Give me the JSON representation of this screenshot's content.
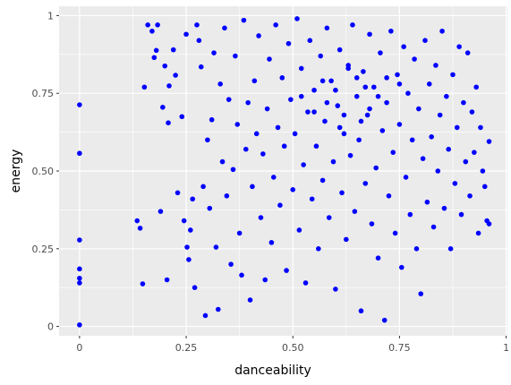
{
  "chart_data": {
    "type": "scatter",
    "title": "",
    "xlabel": "danceability",
    "ylabel": "energy",
    "xlim": [
      -0.048,
      1.003
    ],
    "ylim": [
      -0.03,
      1.03
    ],
    "x_ticks": [
      0,
      0.25,
      0.5,
      0.75,
      1
    ],
    "x_tick_labels": [
      "0",
      "0.25",
      "0.50",
      "0.75",
      "1"
    ],
    "y_ticks": [
      0,
      0.25,
      0.5,
      0.75,
      1
    ],
    "y_tick_labels": [
      "0",
      "0.25",
      "0.50",
      "0.75",
      "1"
    ],
    "grid": true,
    "legend": "none",
    "point_color": "#0000ff",
    "panel_background": "#ebebeb",
    "gridline_color": "#ffffff",
    "series": [
      {
        "points": [
          [
            0,
            0.713
          ],
          [
            0,
            0.557
          ],
          [
            0,
            0.278
          ],
          [
            0,
            0.185
          ],
          [
            0,
            0.155
          ],
          [
            0,
            0.14
          ],
          [
            0,
            0.005
          ],
          [
            0.135,
            0.34
          ],
          [
            0.142,
            0.316
          ],
          [
            0.148,
            0.137
          ],
          [
            0.152,
            0.77
          ],
          [
            0.16,
            0.97
          ],
          [
            0.17,
            0.95
          ],
          [
            0.175,
            0.865
          ],
          [
            0.18,
            0.888
          ],
          [
            0.183,
            0.97
          ],
          [
            0.19,
            0.37
          ],
          [
            0.195,
            0.705
          ],
          [
            0.2,
            0.838
          ],
          [
            0.205,
            0.15
          ],
          [
            0.208,
            0.655
          ],
          [
            0.21,
            0.774
          ],
          [
            0.22,
            0.89
          ],
          [
            0.225,
            0.808
          ],
          [
            0.23,
            0.43
          ],
          [
            0.24,
            0.675
          ],
          [
            0.245,
            0.34
          ],
          [
            0.25,
            0.94
          ],
          [
            0.252,
            0.255
          ],
          [
            0.256,
            0.215
          ],
          [
            0.26,
            0.31
          ],
          [
            0.265,
            0.41
          ],
          [
            0.27,
            0.125
          ],
          [
            0.275,
            0.97
          ],
          [
            0.28,
            0.92
          ],
          [
            0.285,
            0.835
          ],
          [
            0.29,
            0.45
          ],
          [
            0.295,
            0.035
          ],
          [
            0.3,
            0.6
          ],
          [
            0.305,
            0.38
          ],
          [
            0.31,
            0.665
          ],
          [
            0.315,
            0.88
          ],
          [
            0.32,
            0.255
          ],
          [
            0.325,
            0.055
          ],
          [
            0.33,
            0.78
          ],
          [
            0.335,
            0.53
          ],
          [
            0.34,
            0.96
          ],
          [
            0.345,
            0.42
          ],
          [
            0.35,
            0.73
          ],
          [
            0.355,
            0.2
          ],
          [
            0.36,
            0.505
          ],
          [
            0.365,
            0.87
          ],
          [
            0.37,
            0.65
          ],
          [
            0.375,
            0.3
          ],
          [
            0.38,
            0.165
          ],
          [
            0.385,
            0.985
          ],
          [
            0.39,
            0.57
          ],
          [
            0.395,
            0.72
          ],
          [
            0.4,
            0.085
          ],
          [
            0.405,
            0.45
          ],
          [
            0.41,
            0.79
          ],
          [
            0.415,
            0.62
          ],
          [
            0.42,
            0.935
          ],
          [
            0.425,
            0.35
          ],
          [
            0.43,
            0.555
          ],
          [
            0.435,
            0.15
          ],
          [
            0.44,
            0.7
          ],
          [
            0.445,
            0.86
          ],
          [
            0.45,
            0.27
          ],
          [
            0.455,
            0.48
          ],
          [
            0.46,
            0.97
          ],
          [
            0.465,
            0.64
          ],
          [
            0.47,
            0.39
          ],
          [
            0.475,
            0.8
          ],
          [
            0.48,
            0.58
          ],
          [
            0.485,
            0.18
          ],
          [
            0.49,
            0.91
          ],
          [
            0.495,
            0.73
          ],
          [
            0.5,
            0.44
          ],
          [
            0.505,
            0.62
          ],
          [
            0.51,
            0.99
          ],
          [
            0.515,
            0.31
          ],
          [
            0.52,
            0.83
          ],
          [
            0.525,
            0.52
          ],
          [
            0.53,
            0.14
          ],
          [
            0.535,
            0.69
          ],
          [
            0.54,
            0.92
          ],
          [
            0.545,
            0.41
          ],
          [
            0.55,
            0.76
          ],
          [
            0.555,
            0.58
          ],
          [
            0.56,
            0.25
          ],
          [
            0.565,
            0.87
          ],
          [
            0.57,
            0.47
          ],
          [
            0.575,
            0.66
          ],
          [
            0.58,
            0.96
          ],
          [
            0.585,
            0.35
          ],
          [
            0.59,
            0.79
          ],
          [
            0.595,
            0.53
          ],
          [
            0.6,
            0.12
          ],
          [
            0.605,
            0.71
          ],
          [
            0.61,
            0.89
          ],
          [
            0.615,
            0.43
          ],
          [
            0.62,
            0.62
          ],
          [
            0.625,
            0.28
          ],
          [
            0.63,
            0.84
          ],
          [
            0.635,
            0.55
          ],
          [
            0.64,
            0.97
          ],
          [
            0.645,
            0.37
          ],
          [
            0.65,
            0.74
          ],
          [
            0.655,
            0.6
          ],
          [
            0.66,
            0.05
          ],
          [
            0.665,
            0.82
          ],
          [
            0.67,
            0.46
          ],
          [
            0.675,
            0.68
          ],
          [
            0.68,
            0.94
          ],
          [
            0.685,
            0.33
          ],
          [
            0.69,
            0.77
          ],
          [
            0.695,
            0.51
          ],
          [
            0.7,
            0.22
          ],
          [
            0.705,
            0.88
          ],
          [
            0.71,
            0.63
          ],
          [
            0.715,
            0.02
          ],
          [
            0.72,
            0.72
          ],
          [
            0.725,
            0.42
          ],
          [
            0.73,
            0.95
          ],
          [
            0.735,
            0.56
          ],
          [
            0.74,
            0.3
          ],
          [
            0.745,
            0.81
          ],
          [
            0.75,
            0.65
          ],
          [
            0.755,
            0.19
          ],
          [
            0.76,
            0.9
          ],
          [
            0.765,
            0.48
          ],
          [
            0.77,
            0.75
          ],
          [
            0.775,
            0.36
          ],
          [
            0.78,
            0.6
          ],
          [
            0.785,
            0.86
          ],
          [
            0.79,
            0.25
          ],
          [
            0.795,
            0.7
          ],
          [
            0.8,
            0.105
          ],
          [
            0.805,
            0.54
          ],
          [
            0.81,
            0.92
          ],
          [
            0.815,
            0.4
          ],
          [
            0.82,
            0.78
          ],
          [
            0.825,
            0.61
          ],
          [
            0.83,
            0.32
          ],
          [
            0.835,
            0.84
          ],
          [
            0.84,
            0.5
          ],
          [
            0.845,
            0.68
          ],
          [
            0.85,
            0.95
          ],
          [
            0.855,
            0.38
          ],
          [
            0.86,
            0.74
          ],
          [
            0.865,
            0.57
          ],
          [
            0.87,
            0.25
          ],
          [
            0.875,
            0.81
          ],
          [
            0.88,
            0.46
          ],
          [
            0.885,
            0.64
          ],
          [
            0.89,
            0.9
          ],
          [
            0.895,
            0.36
          ],
          [
            0.9,
            0.72
          ],
          [
            0.905,
            0.53
          ],
          [
            0.91,
            0.88
          ],
          [
            0.915,
            0.42
          ],
          [
            0.92,
            0.69
          ],
          [
            0.925,
            0.56
          ],
          [
            0.93,
            0.77
          ],
          [
            0.935,
            0.3
          ],
          [
            0.94,
            0.64
          ],
          [
            0.945,
            0.5
          ],
          [
            0.95,
            0.45
          ],
          [
            0.955,
            0.34
          ],
          [
            0.96,
            0.595
          ],
          [
            0.96,
            0.33
          ],
          [
            0.55,
            0.69
          ],
          [
            0.6,
            0.76
          ],
          [
            0.65,
            0.8
          ],
          [
            0.7,
            0.74
          ],
          [
            0.62,
            0.68
          ],
          [
            0.58,
            0.72
          ],
          [
            0.67,
            0.77
          ],
          [
            0.72,
            0.8
          ],
          [
            0.63,
            0.83
          ],
          [
            0.57,
            0.79
          ],
          [
            0.52,
            0.74
          ],
          [
            0.75,
            0.78
          ],
          [
            0.68,
            0.7
          ],
          [
            0.61,
            0.64
          ],
          [
            0.66,
            0.66
          ]
        ]
      }
    ]
  }
}
